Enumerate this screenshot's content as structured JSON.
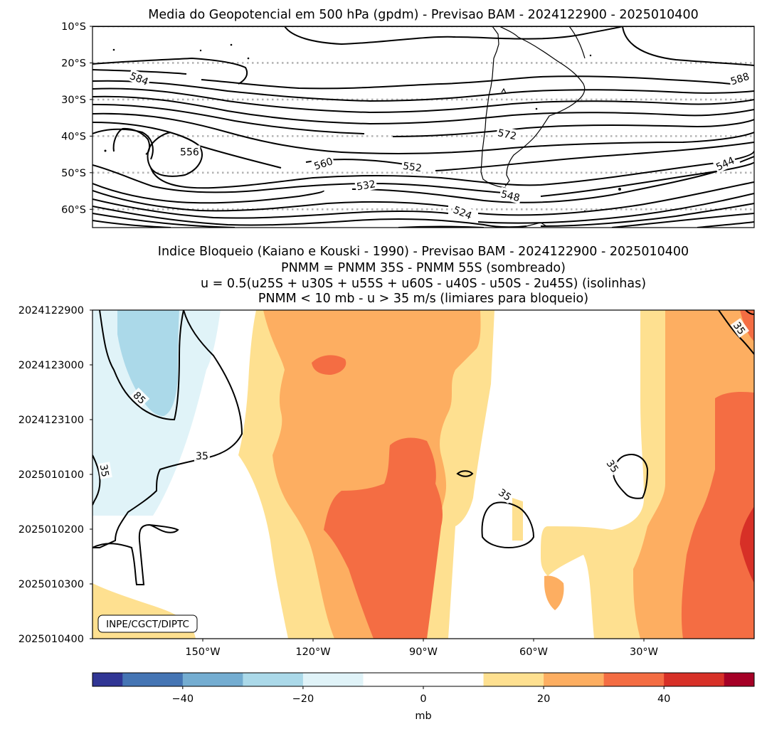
{
  "chart_data": [
    {
      "type": "contour-map",
      "title": "Media do Geopotencial em 500 hPa (gpdm) - Previsao BAM - 2024122900 - 2025010400",
      "ytick_labels": [
        "10°S",
        "20°S",
        "30°S",
        "40°S",
        "50°S",
        "60°S"
      ],
      "lat_range": [
        -65,
        -10
      ],
      "lon_range": [
        -180,
        0
      ],
      "units": "gpdm",
      "contour_labels": [
        {
          "text": "584",
          "lon": -167.3,
          "lat": -24.3,
          "angle": 22
        },
        {
          "text": "588",
          "lon": -3.9,
          "lat": -24.3,
          "angle": -18
        },
        {
          "text": "572",
          "lon": -67.2,
          "lat": -39.5,
          "angle": 12
        },
        {
          "text": "556",
          "lon": -153.6,
          "lat": -44.3,
          "angle": 0
        },
        {
          "text": "560",
          "lon": -117.2,
          "lat": -47.5,
          "angle": -18
        },
        {
          "text": "552",
          "lon": -93.0,
          "lat": -48.4,
          "angle": 8
        },
        {
          "text": "544",
          "lon": -7.9,
          "lat": -47.5,
          "angle": -25
        },
        {
          "text": "532",
          "lon": -105.6,
          "lat": -53.4,
          "angle": -10
        },
        {
          "text": "548",
          "lon": -66.3,
          "lat": -56.3,
          "angle": 14
        },
        {
          "text": "524",
          "lon": -79.3,
          "lat": -60.9,
          "angle": 22
        }
      ]
    },
    {
      "type": "heatmap",
      "title_lines": [
        "Indice Bloqueio (Kaiano e Kouski - 1990) - Previsao BAM - 2024122900 - 2025010400",
        "PNMM = PNMM 35S - PNMM 55S (sombreado)",
        "u = 0.5(u25S + u30S + u55S + u60S - u40S - u50S - 2u45S) (isolinhas)",
        "PNMM < 10 mb - u > 35 m/s (limiares para bloqueio)"
      ],
      "ytick_labels": [
        "2024122900",
        "2024123000",
        "2024123100",
        "2025010100",
        "2025010200",
        "2025010300",
        "2025010400"
      ],
      "xtick_labels": [
        "150°W",
        "120°W",
        "90°W",
        "60°W",
        "30°W"
      ],
      "xtick_values": [
        -150,
        -120,
        -90,
        -60,
        -30
      ],
      "x_range": [
        -180,
        0
      ],
      "shading_levels": [
        -55,
        -50,
        -40,
        -30,
        -20,
        -10,
        10,
        20,
        30,
        40,
        50,
        55
      ],
      "shading_colors": [
        "#313695",
        "#4575b4",
        "#74add1",
        "#abd9e9",
        "#e0f3f8",
        "#ffffff",
        "#fee090",
        "#fdae61",
        "#f46d43",
        "#d73027",
        "#a50026"
      ],
      "contour_labels": [
        {
          "text": "85",
          "lon": -167.2,
          "t": 1.6,
          "angle": 45
        },
        {
          "text": "35",
          "lon": -150.2,
          "t": 2.66,
          "angle": 0
        },
        {
          "text": "35",
          "lon": -176.7,
          "t": 2.93,
          "angle": 80
        },
        {
          "text": "35",
          "lon": -4.0,
          "t": 0.33,
          "angle": 55
        },
        {
          "text": "35",
          "lon": -38.5,
          "t": 2.85,
          "angle": 55
        },
        {
          "text": "35",
          "lon": -67.8,
          "t": 3.37,
          "angle": 35
        }
      ],
      "credit": "INPE/CGCT/DIPTC"
    },
    {
      "type": "colorbar",
      "label": "mb",
      "ticks": [
        -40,
        -20,
        0,
        20,
        40
      ],
      "tick_labels": [
        "−40",
        "−20",
        "0",
        "20",
        "40"
      ],
      "range": [
        -55,
        55
      ]
    }
  ]
}
